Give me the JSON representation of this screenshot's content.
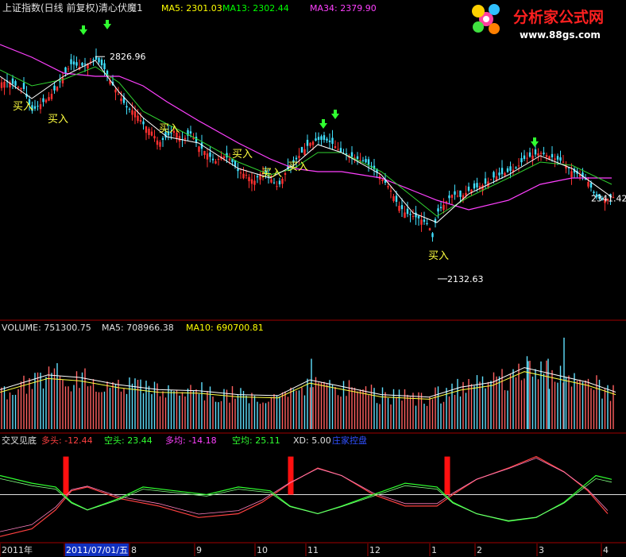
{
  "price_panel": {
    "title": "上证指数(日线 前复权)",
    "formula_name": "清心伏魔1",
    "ma5_label": "MA5: 2301.03",
    "ma13_label": "MA13: 2302.44",
    "ma34_label": "MA34: 2379.90",
    "high_label": "2826.96",
    "low_label": "2132.63",
    "last_label": "2341.42",
    "buy_label": "买入",
    "colors": {
      "up": "#ff3030",
      "down": "#40e0ff",
      "ma5": "#ffffff",
      "ma13": "#ffff00",
      "ma34": "#ff40ff"
    }
  },
  "watermark": {
    "site_name": "分析家公式网",
    "url": "www.88gs.com"
  },
  "volume_panel": {
    "volume_label": "VOLUME: 751300.75",
    "ma5_label": "MA5: 708966.38",
    "ma10_label": "MA10: 690700.81"
  },
  "indicator_panel": {
    "name": "交叉见底",
    "bull_label": "多头: -12.44",
    "bear_label": "空头: 23.44",
    "bull_avg_label": "多均: -14.18",
    "bear_avg_label": "空均: 25.11",
    "xd_label": "XD: 5.00",
    "control_label": "庄家控盘"
  },
  "time_axis": {
    "labels": [
      "2011年",
      "2011/07/01/五",
      "8",
      "9",
      "10",
      "11",
      "12",
      "1",
      "2",
      "3",
      "4"
    ]
  },
  "chart_data": [
    {
      "type": "candlestick",
      "title": "上证指数(日线 前复权)",
      "ylim": [
        2100,
        2900
      ],
      "close_trace": [
        [
          0,
          2740
        ],
        [
          10,
          2745
        ],
        [
          20,
          2730
        ],
        [
          30,
          2720
        ],
        [
          40,
          2650
        ],
        [
          50,
          2670
        ],
        [
          60,
          2690
        ],
        [
          70,
          2720
        ],
        [
          80,
          2760
        ],
        [
          90,
          2800
        ],
        [
          100,
          2790
        ],
        [
          110,
          2800
        ],
        [
          120,
          2815
        ],
        [
          130,
          2790
        ],
        [
          140,
          2740
        ],
        [
          150,
          2700
        ],
        [
          160,
          2660
        ],
        [
          170,
          2650
        ],
        [
          180,
          2610
        ],
        [
          190,
          2590
        ],
        [
          200,
          2550
        ],
        [
          210,
          2570
        ],
        [
          220,
          2590
        ],
        [
          230,
          2560
        ],
        [
          240,
          2580
        ],
        [
          250,
          2540
        ],
        [
          260,
          2520
        ],
        [
          270,
          2490
        ],
        [
          280,
          2510
        ],
        [
          290,
          2500
        ],
        [
          300,
          2460
        ],
        [
          310,
          2450
        ],
        [
          320,
          2430
        ],
        [
          330,
          2460
        ],
        [
          340,
          2440
        ],
        [
          350,
          2410
        ],
        [
          360,
          2460
        ],
        [
          370,
          2490
        ],
        [
          380,
          2520
        ],
        [
          390,
          2550
        ],
        [
          400,
          2560
        ],
        [
          410,
          2560
        ],
        [
          420,
          2545
        ],
        [
          430,
          2520
        ],
        [
          440,
          2510
        ],
        [
          450,
          2500
        ],
        [
          460,
          2490
        ],
        [
          470,
          2470
        ],
        [
          480,
          2440
        ],
        [
          490,
          2410
        ],
        [
          500,
          2360
        ],
        [
          510,
          2330
        ],
        [
          520,
          2320
        ],
        [
          530,
          2310
        ],
        [
          540,
          2290
        ],
        [
          545,
          2250
        ],
        [
          550,
          2330
        ],
        [
          560,
          2360
        ],
        [
          570,
          2390
        ],
        [
          580,
          2380
        ],
        [
          590,
          2400
        ],
        [
          600,
          2410
        ],
        [
          610,
          2420
        ],
        [
          620,
          2440
        ],
        [
          630,
          2450
        ],
        [
          640,
          2460
        ],
        [
          650,
          2470
        ],
        [
          660,
          2500
        ],
        [
          670,
          2510
        ],
        [
          680,
          2520
        ],
        [
          690,
          2510
        ],
        [
          700,
          2500
        ],
        [
          710,
          2490
        ],
        [
          720,
          2460
        ],
        [
          730,
          2450
        ],
        [
          740,
          2430
        ],
        [
          750,
          2380
        ],
        [
          760,
          2370
        ],
        [
          770,
          2380
        ]
      ],
      "ma5": [
        [
          0,
          2760
        ],
        [
          40,
          2690
        ],
        [
          80,
          2760
        ],
        [
          120,
          2810
        ],
        [
          150,
          2710
        ],
        [
          180,
          2630
        ],
        [
          210,
          2570
        ],
        [
          250,
          2550
        ],
        [
          300,
          2470
        ],
        [
          340,
          2440
        ],
        [
          370,
          2480
        ],
        [
          400,
          2545
        ],
        [
          430,
          2520
        ],
        [
          480,
          2450
        ],
        [
          520,
          2330
        ],
        [
          550,
          2300
        ],
        [
          590,
          2390
        ],
        [
          640,
          2450
        ],
        [
          680,
          2510
        ],
        [
          720,
          2470
        ],
        [
          770,
          2380
        ]
      ],
      "ma13": [
        [
          0,
          2780
        ],
        [
          40,
          2730
        ],
        [
          80,
          2750
        ],
        [
          120,
          2790
        ],
        [
          150,
          2740
        ],
        [
          180,
          2650
        ],
        [
          210,
          2610
        ],
        [
          250,
          2560
        ],
        [
          300,
          2490
        ],
        [
          340,
          2450
        ],
        [
          370,
          2470
        ],
        [
          400,
          2520
        ],
        [
          430,
          2520
        ],
        [
          480,
          2460
        ],
        [
          520,
          2380
        ],
        [
          550,
          2320
        ],
        [
          590,
          2380
        ],
        [
          640,
          2440
        ],
        [
          680,
          2490
        ],
        [
          720,
          2480
        ],
        [
          770,
          2420
        ]
      ],
      "ma34": [
        [
          0,
          2860
        ],
        [
          40,
          2820
        ],
        [
          80,
          2770
        ],
        [
          120,
          2760
        ],
        [
          150,
          2760
        ],
        [
          180,
          2730
        ],
        [
          210,
          2680
        ],
        [
          250,
          2620
        ],
        [
          300,
          2550
        ],
        [
          340,
          2500
        ],
        [
          370,
          2470
        ],
        [
          400,
          2460
        ],
        [
          430,
          2460
        ],
        [
          480,
          2440
        ],
        [
          520,
          2400
        ],
        [
          550,
          2370
        ],
        [
          590,
          2340
        ],
        [
          640,
          2370
        ],
        [
          680,
          2420
        ],
        [
          720,
          2440
        ],
        [
          770,
          2440
        ]
      ],
      "sell_arrows": [
        105,
        135,
        407,
        422,
        673
      ],
      "buy_marks": [
        {
          "x": 30,
          "y": 2660
        },
        {
          "x": 74,
          "y": 2620
        },
        {
          "x": 214,
          "y": 2590
        },
        {
          "x": 306,
          "y": 2510
        },
        {
          "x": 343,
          "y": 2450
        },
        {
          "x": 376,
          "y": 2470
        },
        {
          "x": 553,
          "y": 2190
        }
      ],
      "annotations": [
        {
          "text": "2826.96",
          "value": 2826.96,
          "x": 126
        },
        {
          "text": "2132.63",
          "value": 2132.63,
          "x": 551
        },
        {
          "text": "2341.42",
          "value": 2341.42,
          "x": 744
        }
      ]
    },
    {
      "type": "bar",
      "title": "VOLUME",
      "series": [
        {
          "name": "VOLUME",
          "value": 751300.75
        },
        {
          "name": "MA5",
          "value": 708966.38
        },
        {
          "name": "MA10",
          "value": 690700.81
        }
      ],
      "ylim": [
        0,
        2000000
      ],
      "volume_envelope": [
        [
          0,
          800000
        ],
        [
          60,
          1100000
        ],
        [
          100,
          1050000
        ],
        [
          150,
          900000
        ],
        [
          200,
          800000
        ],
        [
          250,
          780000
        ],
        [
          300,
          700000
        ],
        [
          350,
          680000
        ],
        [
          390,
          1000000
        ],
        [
          420,
          900000
        ],
        [
          480,
          700000
        ],
        [
          540,
          650000
        ],
        [
          580,
          850000
        ],
        [
          620,
          950000
        ],
        [
          660,
          1250000
        ],
        [
          700,
          1100000
        ],
        [
          740,
          950000
        ],
        [
          775,
          750000
        ]
      ],
      "spikes": [
        {
          "x": 392,
          "value": 1500000
        },
        {
          "x": 665,
          "value": 1450000
        },
        {
          "x": 690,
          "value": 1500000
        },
        {
          "x": 710,
          "value": 1950000
        }
      ]
    },
    {
      "type": "line",
      "title": "交叉见底",
      "ylim": [
        -60,
        60
      ],
      "series": [
        {
          "name": "多头",
          "color": "#ff4040",
          "points": [
            [
              0,
              -55
            ],
            [
              40,
              -45
            ],
            [
              70,
              -20
            ],
            [
              90,
              5
            ],
            [
              110,
              10
            ],
            [
              150,
              -5
            ],
            [
              200,
              -15
            ],
            [
              250,
              -30
            ],
            [
              300,
              -25
            ],
            [
              330,
              -10
            ],
            [
              365,
              15
            ],
            [
              400,
              35
            ],
            [
              430,
              25
            ],
            [
              470,
              0
            ],
            [
              510,
              -15
            ],
            [
              550,
              -15
            ],
            [
              570,
              0
            ],
            [
              600,
              20
            ],
            [
              640,
              35
            ],
            [
              675,
              50
            ],
            [
              710,
              30
            ],
            [
              740,
              5
            ],
            [
              765,
              -25
            ]
          ]
        },
        {
          "name": "空头",
          "color": "#30ff30",
          "points": [
            [
              0,
              25
            ],
            [
              40,
              15
            ],
            [
              70,
              10
            ],
            [
              90,
              -10
            ],
            [
              110,
              -20
            ],
            [
              150,
              -5
            ],
            [
              180,
              10
            ],
            [
              220,
              5
            ],
            [
              260,
              0
            ],
            [
              300,
              10
            ],
            [
              340,
              5
            ],
            [
              365,
              -15
            ],
            [
              400,
              -25
            ],
            [
              430,
              -15
            ],
            [
              470,
              0
            ],
            [
              510,
              15
            ],
            [
              550,
              10
            ],
            [
              570,
              -10
            ],
            [
              600,
              -25
            ],
            [
              640,
              -35
            ],
            [
              675,
              -30
            ],
            [
              710,
              -10
            ],
            [
              750,
              25
            ],
            [
              770,
              20
            ]
          ]
        }
      ],
      "signal_bars_x": [
        83,
        366,
        563
      ],
      "zero_line": 0
    }
  ]
}
